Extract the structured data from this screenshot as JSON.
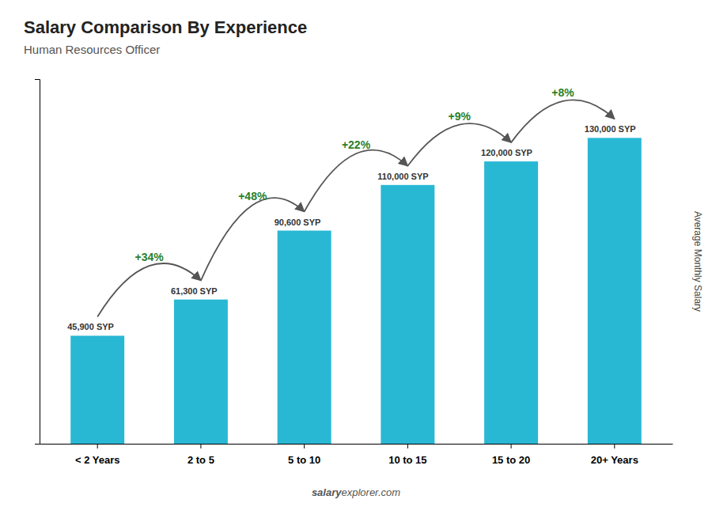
{
  "chart_data": {
    "type": "bar",
    "title": "Salary Comparison By Experience",
    "subtitle": "Human Resources Officer",
    "y_label": "Average Monthly Salary",
    "categories": [
      "< 2 Years",
      "2 to 5",
      "5 to 10",
      "10 to 15",
      "15 to 20",
      "20+ Years"
    ],
    "values": [
      45900,
      61300,
      90600,
      110000,
      120000,
      130000
    ],
    "value_labels": [
      "45,900 SYP",
      "61,300 SYP",
      "90,600 SYP",
      "110,000 SYP",
      "120,000 SYP",
      "130,000 SYP"
    ],
    "data_labels": true,
    "annotations": [
      "+34%",
      "+48%",
      "+22%",
      "+9%",
      "+8%"
    ],
    "footer": [
      "salary",
      "explorer.com"
    ],
    "color": "#29b8d4",
    "ylim": [
      0,
      155000
    ],
    "tick_labels": "x",
    "grid": false
  }
}
